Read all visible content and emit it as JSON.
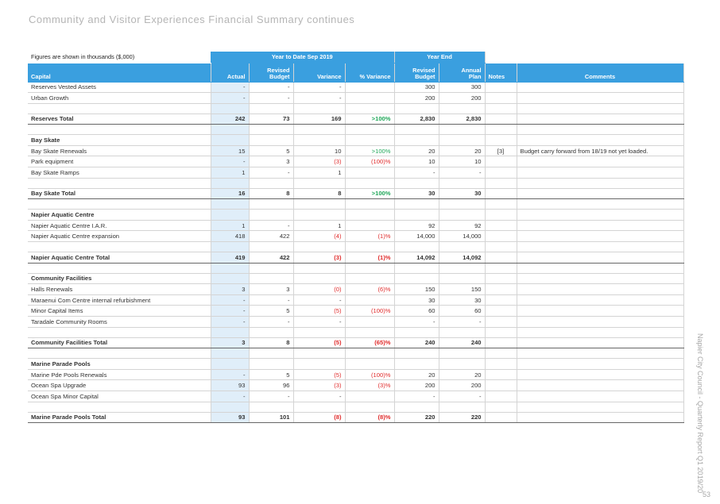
{
  "page_title": "Community and Visitor Experiences Financial Summary continues",
  "side_text": "Napier City Council - Quarterly Report Q1 2019/20",
  "page_number": "53",
  "table": {
    "note": "Figures are shown in thousands ($,000)",
    "group_ytd": "Year to Date Sep 2019",
    "group_ye": "Year End",
    "col_capital": "Capital",
    "col_actual": "Actual",
    "col_revised_budget_1": "Revised",
    "col_revised_budget_2": "Budget",
    "col_variance": "Variance",
    "col_pct_variance": "% Variance",
    "col_ye_revised_1": "Revised",
    "col_ye_revised_2": "Budget",
    "col_annual_1": "Annual",
    "col_annual_2": "Plan",
    "col_notes": "Notes",
    "col_comments": "Comments",
    "rows": [
      {
        "type": "item",
        "label": "Reserves Vested Assets",
        "actual": "-",
        "budget": "-",
        "variance": "-",
        "pct": "",
        "ye_budget": "300",
        "annual": "300",
        "notes": "",
        "comments": ""
      },
      {
        "type": "item",
        "label": "Urban Growth",
        "actual": "-",
        "budget": "-",
        "variance": "-",
        "pct": "",
        "ye_budget": "200",
        "annual": "200",
        "notes": "",
        "comments": ""
      },
      {
        "type": "spacer"
      },
      {
        "type": "total",
        "label": "Reserves Total",
        "actual": "242",
        "budget": "73",
        "variance": "169",
        "variance_tone": "",
        "pct": ">100%",
        "pct_tone": "pos",
        "ye_budget": "2,830",
        "annual": "2,830",
        "notes": "",
        "comments": ""
      },
      {
        "type": "spacer"
      },
      {
        "type": "section",
        "label": "Bay Skate"
      },
      {
        "type": "item",
        "label": "Bay Skate Renewals",
        "actual": "15",
        "budget": "5",
        "variance": "10",
        "pct": ">100%",
        "pct_tone": "pos",
        "ye_budget": "20",
        "annual": "20",
        "notes": "[3]",
        "comments": "Budget carry forward from 18/19 not yet loaded."
      },
      {
        "type": "item",
        "label": "Park equipment",
        "actual": "-",
        "budget": "3",
        "variance": "(3)",
        "variance_tone": "neg",
        "pct": "(100)%",
        "pct_tone": "neg",
        "ye_budget": "10",
        "annual": "10",
        "notes": "",
        "comments": ""
      },
      {
        "type": "item",
        "label": "Bay Skate Ramps",
        "actual": "1",
        "budget": "-",
        "variance": "1",
        "pct": "",
        "ye_budget": "-",
        "annual": "-",
        "notes": "",
        "comments": ""
      },
      {
        "type": "spacer"
      },
      {
        "type": "total",
        "label": "Bay Skate Total",
        "actual": "16",
        "budget": "8",
        "variance": "8",
        "pct": ">100%",
        "pct_tone": "pos",
        "ye_budget": "30",
        "annual": "30",
        "notes": "",
        "comments": ""
      },
      {
        "type": "spacer"
      },
      {
        "type": "section",
        "label": "Napier Aquatic Centre"
      },
      {
        "type": "item",
        "label": "Napier Aquatic Centre I.A.R.",
        "actual": "1",
        "budget": "-",
        "variance": "1",
        "pct": "",
        "ye_budget": "92",
        "annual": "92",
        "notes": "",
        "comments": ""
      },
      {
        "type": "item",
        "label": "Napier Aquatic Centre expansion",
        "actual": "418",
        "budget": "422",
        "variance": "(4)",
        "variance_tone": "neg",
        "pct": "(1)%",
        "pct_tone": "neg",
        "ye_budget": "14,000",
        "annual": "14,000",
        "notes": "",
        "comments": ""
      },
      {
        "type": "spacer"
      },
      {
        "type": "total",
        "label": "Napier Aquatic Centre Total",
        "actual": "419",
        "budget": "422",
        "variance": "(3)",
        "variance_tone": "neg",
        "pct": "(1)%",
        "pct_tone": "neg",
        "ye_budget": "14,092",
        "annual": "14,092",
        "notes": "",
        "comments": ""
      },
      {
        "type": "spacer"
      },
      {
        "type": "section",
        "label": "Community Facilities"
      },
      {
        "type": "item",
        "label": "Halls Renewals",
        "actual": "3",
        "budget": "3",
        "variance": "(0)",
        "variance_tone": "neg",
        "pct": "(6)%",
        "pct_tone": "neg",
        "ye_budget": "150",
        "annual": "150",
        "notes": "",
        "comments": ""
      },
      {
        "type": "item",
        "label": "Maraenui Com Centre internal refurbishment",
        "actual": "-",
        "budget": "-",
        "variance": "-",
        "pct": "",
        "ye_budget": "30",
        "annual": "30",
        "notes": "",
        "comments": ""
      },
      {
        "type": "item",
        "label": "Minor Capital Items",
        "actual": "-",
        "budget": "5",
        "variance": "(5)",
        "variance_tone": "neg",
        "pct": "(100)%",
        "pct_tone": "neg",
        "ye_budget": "60",
        "annual": "60",
        "notes": "",
        "comments": ""
      },
      {
        "type": "item",
        "label": "Taradale Community Rooms",
        "actual": "-",
        "budget": "-",
        "variance": "-",
        "pct": "",
        "ye_budget": "-",
        "annual": "-",
        "notes": "",
        "comments": ""
      },
      {
        "type": "spacer"
      },
      {
        "type": "total",
        "label": "Community Facilities Total",
        "actual": "3",
        "budget": "8",
        "variance": "(5)",
        "variance_tone": "neg",
        "pct": "(65)%",
        "pct_tone": "neg",
        "ye_budget": "240",
        "annual": "240",
        "notes": "",
        "comments": ""
      },
      {
        "type": "spacer"
      },
      {
        "type": "section",
        "label": "Marine Parade Pools"
      },
      {
        "type": "item",
        "label": "Marine Pde Pools Renewals",
        "actual": "-",
        "budget": "5",
        "variance": "(5)",
        "variance_tone": "neg",
        "pct": "(100)%",
        "pct_tone": "neg",
        "ye_budget": "20",
        "annual": "20",
        "notes": "",
        "comments": ""
      },
      {
        "type": "item",
        "label": "Ocean Spa Upgrade",
        "actual": "93",
        "budget": "96",
        "variance": "(3)",
        "variance_tone": "neg",
        "pct": "(3)%",
        "pct_tone": "neg",
        "ye_budget": "200",
        "annual": "200",
        "notes": "",
        "comments": ""
      },
      {
        "type": "item",
        "label": "Ocean Spa Minor Capital",
        "actual": "-",
        "budget": "-",
        "variance": "-",
        "pct": "",
        "ye_budget": "-",
        "annual": "-",
        "notes": "",
        "comments": ""
      },
      {
        "type": "spacer"
      },
      {
        "type": "total",
        "label": "Marine Parade Pools Total",
        "actual": "93",
        "budget": "101",
        "variance": "(8)",
        "variance_tone": "neg",
        "pct": "(8)%",
        "pct_tone": "neg",
        "ye_budget": "220",
        "annual": "220",
        "notes": "",
        "comments": ""
      }
    ]
  }
}
